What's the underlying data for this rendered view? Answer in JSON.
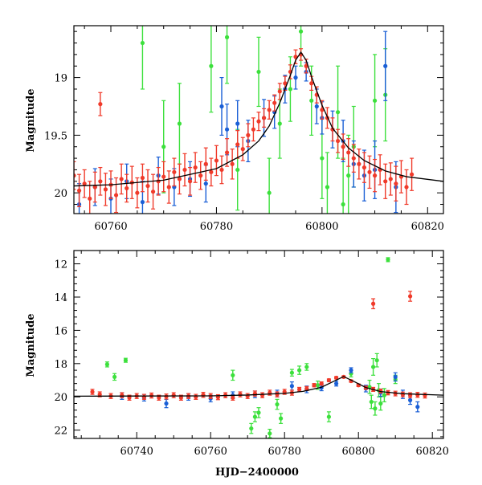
{
  "colors": {
    "red": "#f03a2a",
    "blue": "#1a5fd6",
    "green": "#3ce03c",
    "model": "#000000",
    "background": "#ffffff"
  },
  "chart_data": [
    {
      "type": "scatter",
      "panel": "top",
      "ylabel": "Magnitude",
      "xlabel": "",
      "xlim": [
        60753,
        60823
      ],
      "ylim": [
        20.18,
        18.55
      ],
      "y_inverted": true,
      "x_ticks": [
        60760,
        60780,
        60800,
        60820
      ],
      "y_ticks": [
        19,
        19.5,
        20
      ],
      "model_curve": {
        "type": "line",
        "x": [
          60753,
          60760,
          60770,
          60780,
          60785,
          60788,
          60790,
          60792,
          60794,
          60795,
          60796,
          60797,
          60798,
          60800,
          60802,
          60805,
          60808,
          60812,
          60816,
          60823
        ],
        "y": [
          19.94,
          19.93,
          19.89,
          19.79,
          19.67,
          19.55,
          19.42,
          19.22,
          18.98,
          18.85,
          18.78,
          18.85,
          18.99,
          19.24,
          19.44,
          19.61,
          19.72,
          19.81,
          19.86,
          19.9
        ]
      },
      "series": [
        {
          "color": "red",
          "x": [
            60753,
            60754,
            60755,
            60756,
            60757,
            60758,
            60759,
            60760,
            60761,
            60762,
            60763,
            60764,
            60765,
            60766,
            60767,
            60768,
            60769,
            60770,
            60771,
            60772,
            60773,
            60774,
            60775,
            60776,
            60777,
            60778,
            60779,
            60780,
            60781,
            60782,
            60783,
            60784,
            60785,
            60786,
            60787,
            60788,
            60789,
            60790,
            60791,
            60792,
            60793,
            60794,
            60795,
            60796,
            60797,
            60798,
            60799,
            60800,
            60801,
            60802,
            60803,
            60804,
            60805,
            60806,
            60807,
            60808,
            60809,
            60810,
            60811,
            60812,
            60813,
            60814,
            60815,
            60816,
            60817,
            60758
          ],
          "y": [
            19.85,
            19.98,
            19.92,
            20.05,
            19.95,
            19.9,
            19.97,
            19.93,
            20.02,
            19.88,
            19.96,
            19.91,
            20.0,
            19.87,
            19.94,
            19.99,
            19.9,
            19.86,
            19.95,
            19.82,
            19.88,
            19.8,
            19.9,
            19.78,
            19.85,
            19.75,
            19.82,
            19.72,
            19.8,
            19.65,
            19.75,
            19.58,
            19.62,
            19.5,
            19.45,
            19.38,
            19.35,
            19.28,
            19.22,
            19.12,
            19.05,
            18.95,
            18.82,
            18.8,
            18.9,
            19.05,
            19.15,
            19.28,
            19.35,
            19.45,
            19.55,
            19.6,
            19.65,
            19.7,
            19.75,
            19.78,
            19.82,
            19.85,
            19.8,
            19.9,
            19.88,
            19.92,
            19.86,
            19.95,
            19.84,
            19.23
          ],
          "err": [
            0.12,
            0.14,
            0.12,
            0.15,
            0.13,
            0.12,
            0.14,
            0.12,
            0.15,
            0.13,
            0.12,
            0.14,
            0.13,
            0.12,
            0.14,
            0.15,
            0.12,
            0.13,
            0.14,
            0.12,
            0.13,
            0.14,
            0.12,
            0.13,
            0.12,
            0.14,
            0.12,
            0.13,
            0.12,
            0.12,
            0.13,
            0.12,
            0.1,
            0.1,
            0.1,
            0.08,
            0.08,
            0.08,
            0.07,
            0.07,
            0.06,
            0.06,
            0.06,
            0.05,
            0.06,
            0.06,
            0.07,
            0.08,
            0.09,
            0.1,
            0.1,
            0.11,
            0.12,
            0.12,
            0.13,
            0.13,
            0.14,
            0.14,
            0.13,
            0.15,
            0.14,
            0.15,
            0.14,
            0.15,
            0.14,
            0.1
          ]
        },
        {
          "color": "blue",
          "x": [
            60754,
            60757,
            60760,
            60763,
            60766,
            60769,
            60772,
            60775,
            60778,
            60781,
            60782,
            60784,
            60786,
            60789,
            60791,
            60793,
            60795,
            60797,
            60799,
            60800,
            60802,
            60804,
            60806,
            60808,
            60810,
            60812,
            60814
          ],
          "y": [
            20.1,
            19.95,
            20.05,
            19.9,
            20.08,
            19.85,
            19.95,
            19.88,
            19.92,
            19.25,
            19.45,
            19.4,
            19.55,
            19.35,
            19.3,
            19.1,
            19.0,
            18.95,
            19.25,
            19.35,
            19.45,
            19.55,
            19.75,
            19.85,
            19.8,
            18.9,
            19.95
          ],
          "err": [
            0.18,
            0.16,
            0.17,
            0.15,
            0.18,
            0.16,
            0.16,
            0.15,
            0.16,
            0.25,
            0.22,
            0.2,
            0.18,
            0.16,
            0.14,
            0.12,
            0.1,
            0.08,
            0.15,
            0.14,
            0.16,
            0.18,
            0.2,
            0.22,
            0.25,
            0.3,
            0.22
          ]
        },
        {
          "color": "green",
          "x": [
            60766,
            60770,
            60773,
            60779,
            60782,
            60784,
            60788,
            60790,
            60792,
            60794,
            60796,
            60798,
            60800,
            60801,
            60803,
            60804,
            60805,
            60806,
            60810,
            60812
          ],
          "y": [
            18.7,
            19.6,
            19.4,
            18.9,
            18.65,
            19.8,
            18.95,
            20.0,
            19.4,
            19.1,
            18.6,
            19.2,
            19.7,
            19.95,
            19.3,
            20.1,
            19.85,
            19.6,
            19.2,
            19.15
          ],
          "err": [
            0.4,
            0.4,
            0.35,
            0.4,
            0.4,
            0.35,
            0.3,
            0.3,
            0.3,
            0.28,
            0.3,
            0.3,
            0.35,
            0.3,
            0.4,
            0.4,
            0.35,
            0.35,
            0.4,
            0.4
          ]
        }
      ]
    },
    {
      "type": "scatter",
      "panel": "bottom",
      "ylabel": "Magnitude",
      "xlabel": "HJD−2400000",
      "xlim": [
        60723,
        60823
      ],
      "ylim": [
        22.5,
        11.2
      ],
      "y_inverted": true,
      "x_ticks": [
        60740,
        60760,
        60780,
        60800,
        60820
      ],
      "y_ticks": [
        12,
        14,
        16,
        18,
        20,
        22
      ],
      "model_curve": {
        "type": "line",
        "x": [
          60723,
          60740,
          60760,
          60770,
          60780,
          60785,
          60790,
          60793,
          60796,
          60799,
          60802,
          60806,
          60812,
          60823
        ],
        "y": [
          19.96,
          19.95,
          19.94,
          19.89,
          19.79,
          19.67,
          19.42,
          19.1,
          18.78,
          19.1,
          19.44,
          19.68,
          19.81,
          19.9
        ]
      },
      "series": [
        {
          "color": "red",
          "x": [
            60728,
            60730,
            60733,
            60736,
            60738,
            60740,
            60742,
            60744,
            60746,
            60748,
            60750,
            60752,
            60754,
            60756,
            60758,
            60760,
            60762,
            60764,
            60766,
            60768,
            60770,
            60772,
            60774,
            60776,
            60778,
            60780,
            60782,
            60784,
            60786,
            60788,
            60790,
            60792,
            60794,
            60796,
            60798,
            60800,
            60802,
            60804,
            60806,
            60808,
            60810,
            60812,
            60814,
            60816,
            60818,
            60804,
            60814
          ],
          "y": [
            19.7,
            19.85,
            19.95,
            19.9,
            20.05,
            19.95,
            20.0,
            19.92,
            20.05,
            19.98,
            19.9,
            20.05,
            19.95,
            20.0,
            19.88,
            19.95,
            20.02,
            19.9,
            20.05,
            19.85,
            19.95,
            19.8,
            19.9,
            19.75,
            19.85,
            19.7,
            19.75,
            19.55,
            19.5,
            19.3,
            19.2,
            19.0,
            18.85,
            18.8,
            19.05,
            19.3,
            19.45,
            19.55,
            19.65,
            19.75,
            19.8,
            19.85,
            19.9,
            19.88,
            19.92,
            14.4,
            13.95
          ],
          "err": [
            0.15,
            0.15,
            0.15,
            0.15,
            0.15,
            0.15,
            0.15,
            0.15,
            0.15,
            0.15,
            0.15,
            0.15,
            0.15,
            0.15,
            0.15,
            0.15,
            0.15,
            0.15,
            0.15,
            0.15,
            0.15,
            0.15,
            0.15,
            0.15,
            0.15,
            0.15,
            0.15,
            0.12,
            0.12,
            0.1,
            0.1,
            0.08,
            0.07,
            0.06,
            0.07,
            0.08,
            0.1,
            0.12,
            0.12,
            0.13,
            0.14,
            0.14,
            0.15,
            0.15,
            0.15,
            0.3,
            0.3
          ]
        },
        {
          "color": "blue",
          "x": [
            60736,
            60742,
            60748,
            60754,
            60760,
            60766,
            60772,
            60778,
            60782,
            60786,
            60790,
            60794,
            60798,
            60802,
            60806,
            60810,
            60812,
            60814,
            60816
          ],
          "y": [
            19.95,
            20.05,
            20.4,
            20.0,
            20.1,
            19.9,
            19.85,
            19.8,
            19.35,
            19.55,
            19.45,
            19.2,
            18.4,
            19.5,
            19.75,
            18.8,
            19.85,
            20.2,
            20.6
          ],
          "err": [
            0.2,
            0.2,
            0.25,
            0.2,
            0.2,
            0.2,
            0.2,
            0.2,
            0.25,
            0.2,
            0.18,
            0.15,
            0.15,
            0.2,
            0.22,
            0.25,
            0.25,
            0.25,
            0.3
          ]
        },
        {
          "color": "green",
          "x": [
            60732,
            60734,
            60737,
            60766,
            60771,
            60772,
            60773,
            60776,
            60778,
            60779,
            60782,
            60784,
            60786,
            60789,
            60792,
            60798,
            60803,
            60803.5,
            60804,
            60804.5,
            60805,
            60805.5,
            60806,
            60807,
            60808,
            60810
          ],
          "y": [
            18.05,
            18.8,
            17.8,
            18.7,
            21.9,
            21.2,
            20.95,
            22.2,
            20.45,
            21.3,
            18.55,
            18.4,
            18.2,
            19.3,
            21.2,
            18.6,
            19.4,
            20.3,
            18.2,
            20.7,
            17.8,
            19.6,
            20.4,
            19.9,
            11.75,
            18.95
          ],
          "err": [
            0.15,
            0.2,
            0.12,
            0.3,
            0.3,
            0.3,
            0.3,
            0.25,
            0.3,
            0.3,
            0.2,
            0.25,
            0.2,
            0.25,
            0.3,
            0.2,
            0.4,
            0.4,
            0.5,
            0.4,
            0.4,
            0.4,
            0.4,
            0.4,
            0.12,
            0.25
          ]
        }
      ]
    }
  ]
}
